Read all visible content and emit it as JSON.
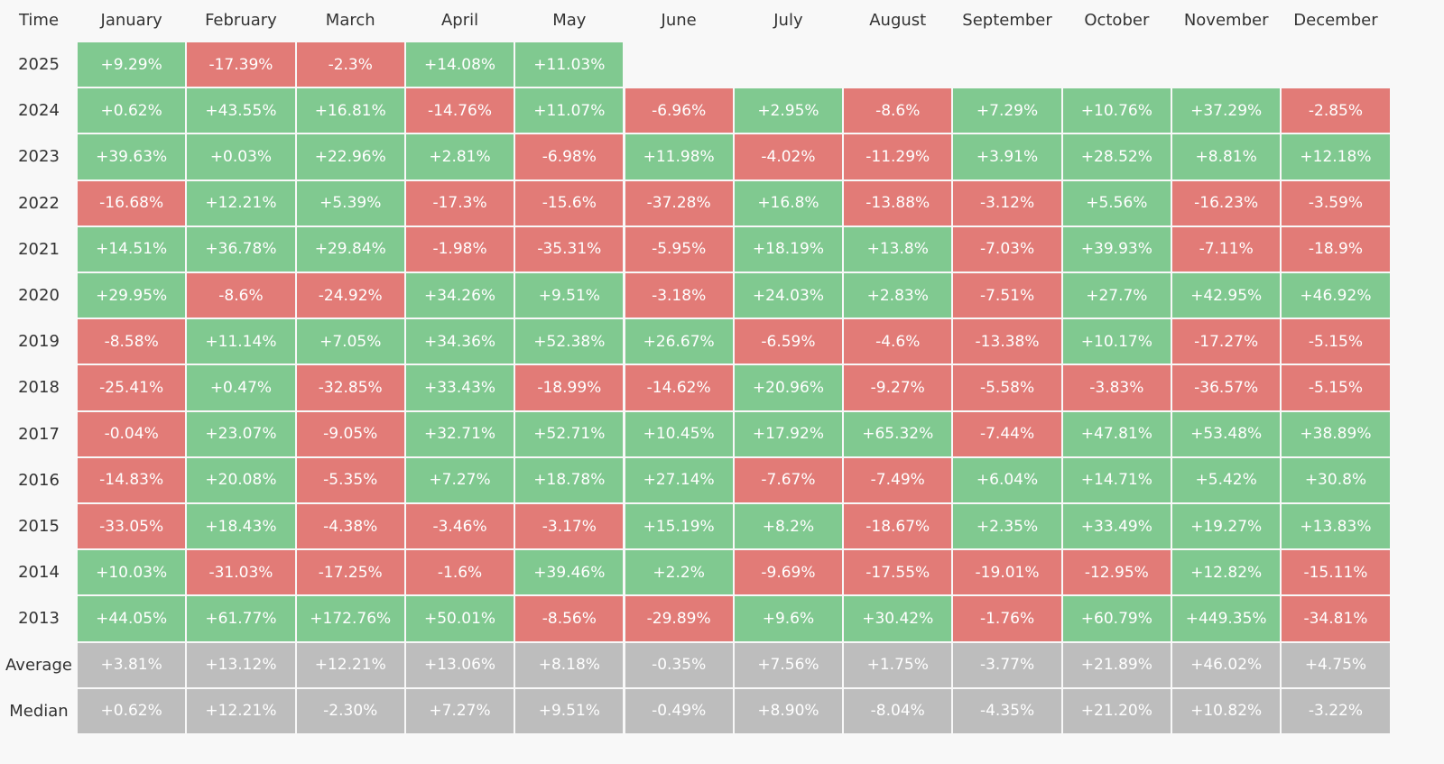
{
  "table": {
    "header": [
      "Time",
      "January",
      "February",
      "March",
      "April",
      "May",
      "June",
      "July",
      "August",
      "September",
      "October",
      "November",
      "December"
    ],
    "rows": [
      {
        "label": "2025",
        "cells": [
          "+9.29%",
          "-17.39%",
          "-2.3%",
          "+14.08%",
          "+11.03%"
        ]
      },
      {
        "label": "2024",
        "cells": [
          "+0.62%",
          "+43.55%",
          "+16.81%",
          "-14.76%",
          "+11.07%",
          "-6.96%",
          "+2.95%",
          "-8.6%",
          "+7.29%",
          "+10.76%",
          "+37.29%",
          "-2.85%"
        ]
      },
      {
        "label": "2023",
        "cells": [
          "+39.63%",
          "+0.03%",
          "+22.96%",
          "+2.81%",
          "-6.98%",
          "+11.98%",
          "-4.02%",
          "-11.29%",
          "+3.91%",
          "+28.52%",
          "+8.81%",
          "+12.18%"
        ]
      },
      {
        "label": "2022",
        "cells": [
          "-16.68%",
          "+12.21%",
          "+5.39%",
          "-17.3%",
          "-15.6%",
          "-37.28%",
          "+16.8%",
          "-13.88%",
          "-3.12%",
          "+5.56%",
          "-16.23%",
          "-3.59%"
        ]
      },
      {
        "label": "2021",
        "cells": [
          "+14.51%",
          "+36.78%",
          "+29.84%",
          "-1.98%",
          "-35.31%",
          "-5.95%",
          "+18.19%",
          "+13.8%",
          "-7.03%",
          "+39.93%",
          "-7.11%",
          "-18.9%"
        ]
      },
      {
        "label": "2020",
        "cells": [
          "+29.95%",
          "-8.6%",
          "-24.92%",
          "+34.26%",
          "+9.51%",
          "-3.18%",
          "+24.03%",
          "+2.83%",
          "-7.51%",
          "+27.7%",
          "+42.95%",
          "+46.92%"
        ]
      },
      {
        "label": "2019",
        "cells": [
          "-8.58%",
          "+11.14%",
          "+7.05%",
          "+34.36%",
          "+52.38%",
          "+26.67%",
          "-6.59%",
          "-4.6%",
          "-13.38%",
          "+10.17%",
          "-17.27%",
          "-5.15%"
        ]
      },
      {
        "label": "2018",
        "cells": [
          "-25.41%",
          "+0.47%",
          "-32.85%",
          "+33.43%",
          "-18.99%",
          "-14.62%",
          "+20.96%",
          "-9.27%",
          "-5.58%",
          "-3.83%",
          "-36.57%",
          "-5.15%"
        ]
      },
      {
        "label": "2017",
        "cells": [
          "-0.04%",
          "+23.07%",
          "-9.05%",
          "+32.71%",
          "+52.71%",
          "+10.45%",
          "+17.92%",
          "+65.32%",
          "-7.44%",
          "+47.81%",
          "+53.48%",
          "+38.89%"
        ]
      },
      {
        "label": "2016",
        "cells": [
          "-14.83%",
          "+20.08%",
          "-5.35%",
          "+7.27%",
          "+18.78%",
          "+27.14%",
          "-7.67%",
          "-7.49%",
          "+6.04%",
          "+14.71%",
          "+5.42%",
          "+30.8%"
        ]
      },
      {
        "label": "2015",
        "cells": [
          "-33.05%",
          "+18.43%",
          "-4.38%",
          "-3.46%",
          "-3.17%",
          "+15.19%",
          "+8.2%",
          "-18.67%",
          "+2.35%",
          "+33.49%",
          "+19.27%",
          "+13.83%"
        ]
      },
      {
        "label": "2014",
        "cells": [
          "+10.03%",
          "-31.03%",
          "-17.25%",
          "-1.6%",
          "+39.46%",
          "+2.2%",
          "-9.69%",
          "-17.55%",
          "-19.01%",
          "-12.95%",
          "+12.82%",
          "-15.11%"
        ]
      },
      {
        "label": "2013",
        "cells": [
          "+44.05%",
          "+61.77%",
          "+172.76%",
          "+50.01%",
          "-8.56%",
          "-29.89%",
          "+9.6%",
          "+30.42%",
          "-1.76%",
          "+60.79%",
          "+449.35%",
          "-34.81%"
        ]
      }
    ],
    "summary": [
      {
        "label": "Average",
        "cells": [
          "+3.81%",
          "+13.12%",
          "+12.21%",
          "+13.06%",
          "+8.18%",
          "-0.35%",
          "+7.56%",
          "+1.75%",
          "-3.77%",
          "+21.89%",
          "+46.02%",
          "+4.75%"
        ]
      },
      {
        "label": "Median",
        "cells": [
          "+0.62%",
          "+12.21%",
          "-2.30%",
          "+7.27%",
          "+9.51%",
          "-0.49%",
          "+8.90%",
          "-8.04%",
          "-4.35%",
          "+21.20%",
          "+10.82%",
          "-3.22%"
        ]
      }
    ]
  }
}
